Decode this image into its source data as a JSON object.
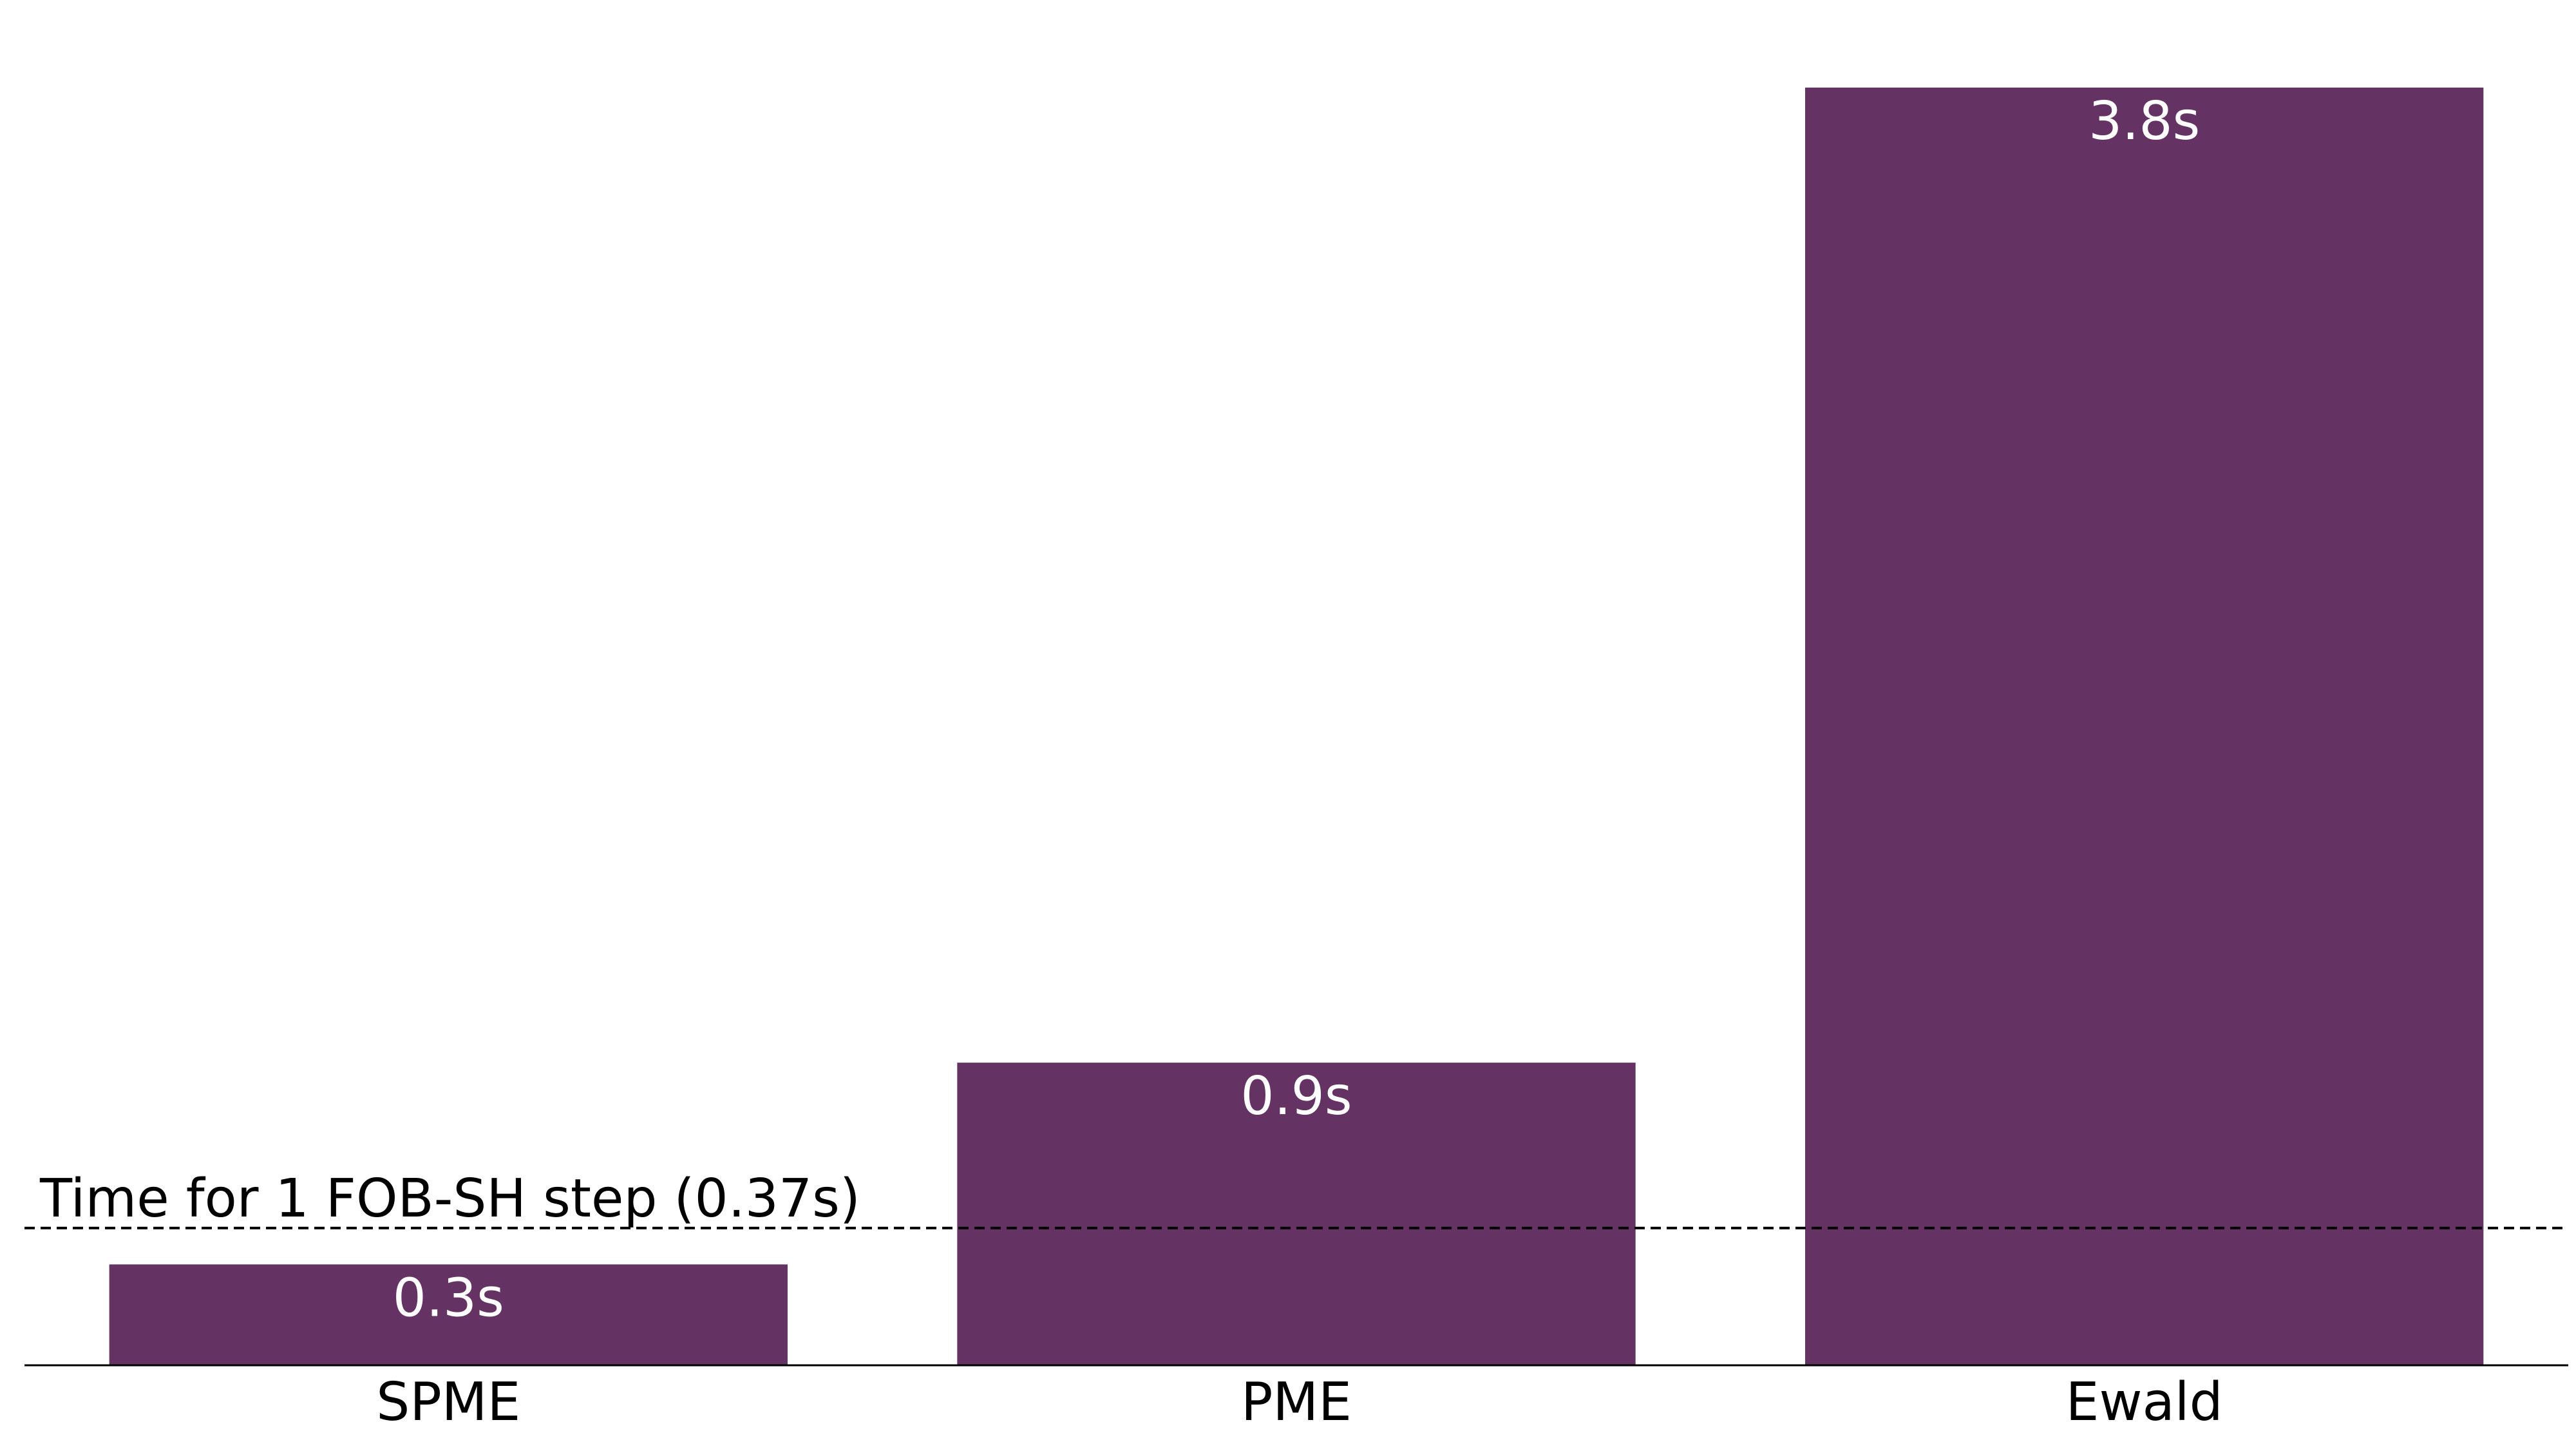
{
  "chart_data": {
    "type": "bar",
    "categories": [
      "SPME",
      "PME",
      "Ewald"
    ],
    "values": [
      0.3,
      0.9,
      3.8
    ],
    "bar_labels": [
      "0.3s",
      "0.9s",
      "3.8s"
    ],
    "ylim": [
      0,
      3.8
    ],
    "grid": false,
    "reference_line": {
      "value": 0.37,
      "label": "Time for 1 FOB-SH step (0.37s)",
      "style": "dashed"
    },
    "colors": {
      "bar": "#643263",
      "bar_label": "#ffffff",
      "axis": "#000000",
      "reference_line": "#000000"
    }
  }
}
